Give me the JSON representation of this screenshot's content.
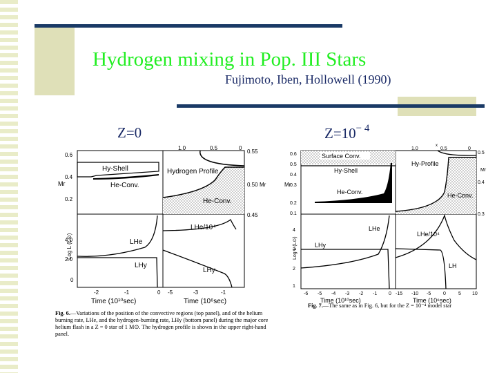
{
  "slide": {
    "title": "Hydrogen mixing in Pop.  III Stars",
    "authors": "Fujimoto, Iben, Hollowell  (1990)",
    "left_label": "Z=0",
    "right_label_base": "Z=10",
    "right_label_exp": "− 4"
  },
  "fig6": {
    "top_left": {
      "ylabel": "Mr",
      "yticks": [
        "0.6",
        "0.4",
        "0.2"
      ],
      "labels": [
        "Hy-Shell",
        "He-Conv."
      ]
    },
    "top_right": {
      "top_ticks": [
        "1.0",
        "0.5",
        "0"
      ],
      "right_ticks": [
        "0.55",
        "0.50",
        "0.45"
      ],
      "right_label": "Mr",
      "labels": [
        "Hydrogen Profile",
        "He-Conv."
      ]
    },
    "bottom_left": {
      "ylabel": "Log L (L⊙)",
      "yticks": [
        "4.0",
        "2.0",
        "0"
      ],
      "label_he": "LHe",
      "label_hy": "LHy",
      "xticks": [
        "-2",
        "-1",
        "0"
      ],
      "xlabel": "Time  (10¹⁰sec)"
    },
    "bottom_right": {
      "label_he": "LHe/10⁴",
      "label_hy": "LHy",
      "xticks": [
        "-5",
        "-3",
        "-1"
      ],
      "xlabel": "Time  (10⁶sec)"
    },
    "caption_lead": "Fig. 6.",
    "caption": "—Variations of the position of the convective regions (top panel), and of the helium burning rate, LHe, and the hydrogen-burning rate, LHy (bottom panel) during the major core helium flash in a Z = 0 star of 1 M⊙. The hydrogen profile is shown in the upper right-hand panel."
  },
  "fig7": {
    "top_left": {
      "ylabel": "Mr",
      "yticks": [
        "0.6",
        "0.5",
        "0.4",
        "0.3",
        "0.2",
        "0.1"
      ],
      "labels": [
        "Surface Conv.",
        "Hy-Shell",
        "He-Conv."
      ]
    },
    "top_right": {
      "top_label": "x",
      "top_ticks": [
        "1.0",
        "0.5",
        "0"
      ],
      "right_ticks": [
        "0.5",
        "0.4",
        "0.3"
      ],
      "right_label": "Mr",
      "labels": [
        "Hy-Profile",
        "He-Conv."
      ]
    },
    "bottom_left": {
      "ylabel": "Log L (L⊙)",
      "yticks": [
        "4",
        "3",
        "2",
        "1"
      ],
      "label_he": "LHe",
      "label_hy": "LHy",
      "xticks": [
        "-6",
        "-5",
        "-4",
        "-3",
        "-2",
        "-1",
        "0"
      ],
      "xlabel": "Time  (10¹⁰sec)"
    },
    "bottom_right": {
      "label_he": "LHe/10⁴",
      "label_h": "LH",
      "xticks": [
        "-15",
        "-10",
        "-5",
        "0",
        "5",
        "10"
      ],
      "xlabel": "Time  (10⁶sec)"
    },
    "caption_lead": "Fig. 7.",
    "caption": "—The same as in Fig. 6, but for the Z = 10⁻⁴ model star"
  }
}
